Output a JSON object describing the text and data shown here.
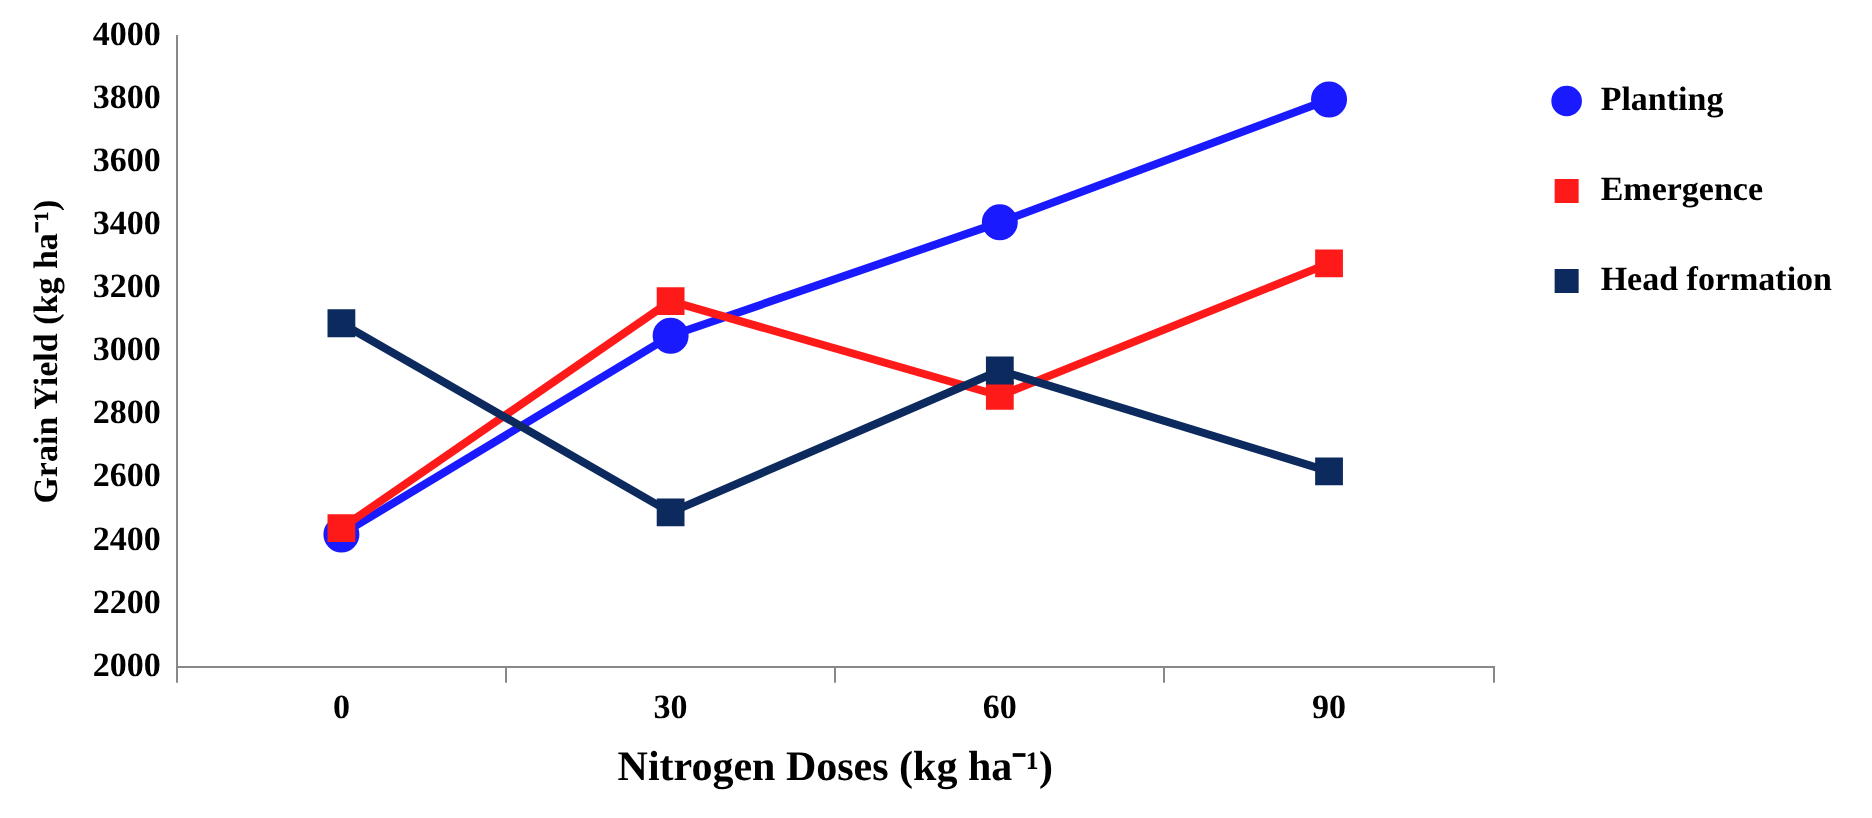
{
  "chart_data": {
    "type": "line",
    "xlabel": "Nitrogen Doses (kg ha⁻¹)",
    "ylabel": "Grain Yield (kg ha⁻¹)",
    "categories": [
      "0",
      "30",
      "60",
      "90"
    ],
    "series": [
      {
        "name": "Planting",
        "color": "#1a1aff",
        "marker": "circle",
        "values": [
          2420,
          3050,
          3410,
          3800
        ]
      },
      {
        "name": "Emergence",
        "color": "#ff1a1a",
        "marker": "square",
        "values": [
          2440,
          3160,
          2860,
          3280
        ]
      },
      {
        "name": "Head formation",
        "color": "#0d2a5e",
        "marker": "square",
        "values": [
          3090,
          2490,
          2940,
          2620
        ]
      }
    ],
    "ylim": [
      2000,
      4000
    ],
    "yticks": [
      2000,
      2200,
      2400,
      2600,
      2800,
      3000,
      3200,
      3400,
      3600,
      3800,
      4000
    ],
    "grid": false,
    "legend": "right",
    "line_style": "solid"
  }
}
